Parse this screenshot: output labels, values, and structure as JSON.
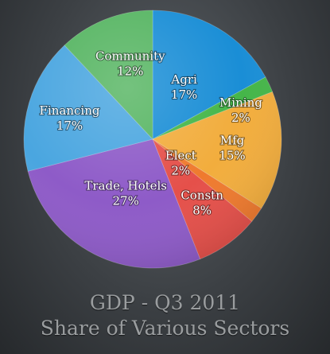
{
  "chart_data": {
    "type": "pie",
    "title_lines": [
      "GDP - Q3 2011",
      "Share of Various Sectors"
    ],
    "slices": [
      {
        "name": "Agri",
        "value_label": "17%",
        "value": 17,
        "color": "#1a8ed6"
      },
      {
        "name": "Mining",
        "value_label": "2%",
        "value": 2,
        "color": "#45b649"
      },
      {
        "name": "Mfg",
        "value_label": "15%",
        "value": 15,
        "color": "#f2ad3d"
      },
      {
        "name": "Elect",
        "value_label": "2%",
        "value": 2,
        "color": "#ef7a2e"
      },
      {
        "name": "Constn",
        "value_label": "8%",
        "value": 8,
        "color": "#e5504a"
      },
      {
        "name": "Trade, Hotels",
        "value_label": "27%",
        "value": 27,
        "color": "#8e5bc8"
      },
      {
        "name": "Financing",
        "value_label": "17%",
        "value": 17,
        "color": "#4aa6e0"
      },
      {
        "name": "Community",
        "value_label": "12%",
        "value": 12,
        "color": "#56b562"
      }
    ],
    "legend": "none"
  }
}
